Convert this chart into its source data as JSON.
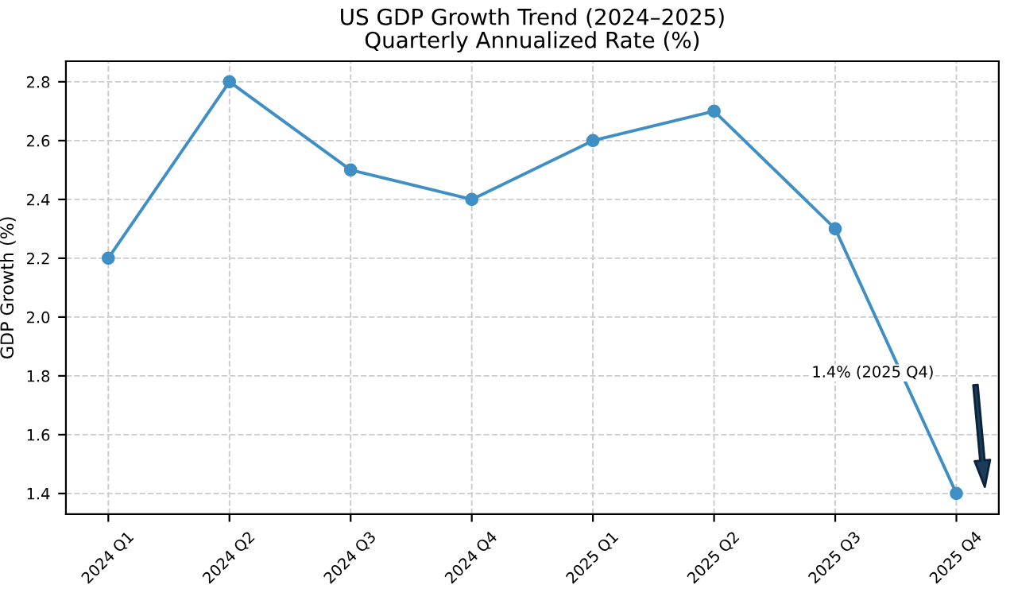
{
  "chart_data": {
    "type": "line",
    "title": "US GDP Growth Trend (2024–2025)",
    "subtitle": "Quarterly Annualized Rate (%)",
    "ylabel": "GDP Growth (%)",
    "categories": [
      "2024 Q1",
      "2024 Q2",
      "2024 Q3",
      "2024 Q4",
      "2025 Q1",
      "2025 Q2",
      "2025 Q3",
      "2025 Q4"
    ],
    "series": [
      {
        "color": "#3f8fc4",
        "values": [
          2.2,
          2.8,
          2.5,
          2.4,
          2.6,
          2.7,
          2.3,
          1.4
        ]
      }
    ],
    "ylim": [
      1.33,
      2.87
    ],
    "yticks": [
      1.4,
      1.6,
      1.8,
      {
        "value": 2.0,
        "label": "2.0"
      },
      2.2,
      2.4,
      2.6,
      2.8
    ],
    "grid": true,
    "marker": "circle",
    "line_style": "solid",
    "legend": false,
    "annotations": [
      "1.4% (2025 Q4)"
    ]
  }
}
